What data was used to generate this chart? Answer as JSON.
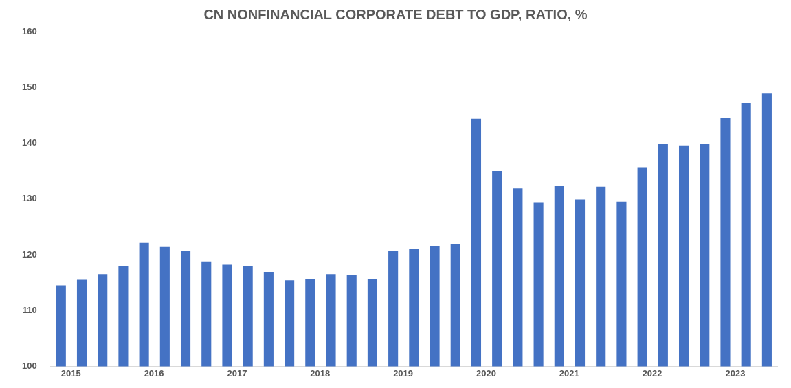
{
  "chart_data": {
    "type": "bar",
    "title": "CN NONFINANCIAL CORPORATE DEBT TO GDP, RATIO, %",
    "categories": [
      "2015",
      null,
      null,
      null,
      "2016",
      null,
      null,
      null,
      "2017",
      null,
      null,
      null,
      "2018",
      null,
      null,
      null,
      "2019",
      null,
      null,
      null,
      "2020",
      null,
      null,
      null,
      "2021",
      null,
      null,
      null,
      "2022",
      null,
      null,
      null,
      "2023",
      null,
      null
    ],
    "values": [
      114.5,
      115.5,
      116.5,
      118,
      122.1,
      121.5,
      120.7,
      118.8,
      118.2,
      117.9,
      116.9,
      115.4,
      115.6,
      116.5,
      116.3,
      115.6,
      120.6,
      121,
      121.6,
      121.9,
      144.4,
      135,
      131.9,
      129.4,
      132.3,
      129.9,
      132.2,
      129.5,
      135.7,
      139.8,
      139.6,
      139.8,
      144.5,
      147.2,
      148.9
    ],
    "color": "#4472c4",
    "ylim": [
      100,
      160
    ],
    "yticks": [
      100,
      110,
      120,
      130,
      140,
      150,
      160
    ],
    "grid": false,
    "legend": false
  }
}
